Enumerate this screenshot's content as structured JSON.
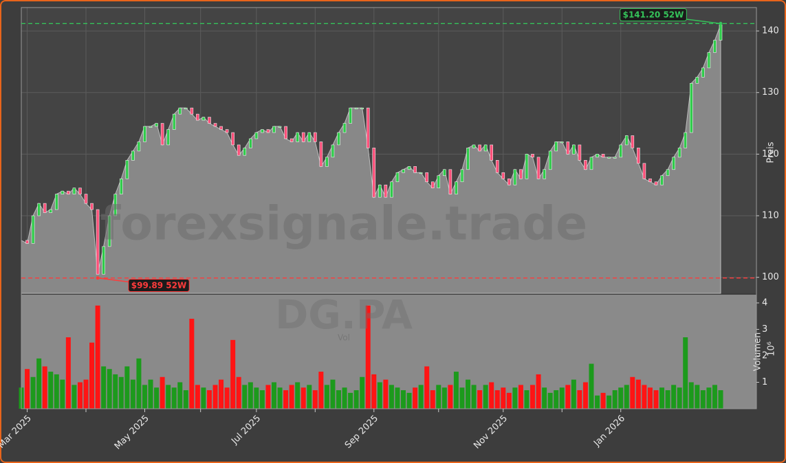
{
  "chart_data": {
    "type": "candlestick",
    "watermark": "forexsignale.trade",
    "symbol": "DG.PA",
    "symbol_sub": "Vol",
    "ylabel": "Preis",
    "volume_ylabel": "Volumen",
    "volume_offset": "10⁶",
    "categories": [
      null,
      "Mar 2025",
      null,
      null,
      null,
      null,
      null,
      null,
      null,
      null,
      null,
      null,
      null,
      null,
      null,
      null,
      null,
      null,
      null,
      null,
      null,
      "May 2025",
      null,
      null,
      null,
      null,
      null,
      null,
      null,
      null,
      null,
      null,
      null,
      null,
      null,
      null,
      null,
      null,
      null,
      null,
      "Jul 2025",
      null,
      null,
      null,
      null,
      null,
      null,
      null,
      null,
      null,
      null,
      null,
      null,
      null,
      null,
      null,
      null,
      null,
      null,
      null,
      "Sep 2025",
      null,
      null,
      null,
      null,
      null,
      null,
      null,
      null,
      null,
      null,
      null,
      null,
      null,
      null,
      null,
      null,
      null,
      null,
      null,
      null,
      null,
      "Nov 2025",
      null,
      null,
      null,
      null,
      null,
      null,
      null,
      null,
      null,
      null,
      null,
      null,
      null,
      null,
      null,
      null,
      null,
      null,
      null,
      "Jan 2026",
      null,
      null,
      null,
      null,
      null,
      null,
      null,
      null,
      null,
      null,
      null,
      null,
      null,
      null,
      null,
      null,
      null
    ],
    "close": [
      106,
      105.5,
      110,
      112,
      110.5,
      111,
      113.5,
      114,
      113.5,
      114.5,
      113.5,
      112,
      111,
      100.5,
      105,
      110,
      113.5,
      116,
      119,
      120.5,
      122,
      124.5,
      124.5,
      125,
      121.5,
      124,
      126.5,
      127.5,
      127.5,
      126.5,
      125.5,
      126,
      125,
      124.5,
      124,
      123.5,
      121.5,
      119.8,
      121,
      122.5,
      123.5,
      124,
      123.5,
      124.5,
      124.5,
      122.5,
      122,
      123.5,
      122,
      123.5,
      122,
      118,
      119.5,
      121.5,
      123.5,
      125,
      127.5,
      127.5,
      127.5,
      121,
      113,
      115,
      113,
      115.5,
      117,
      117.5,
      118,
      117,
      117,
      115.5,
      114.5,
      116.5,
      117.5,
      113.5,
      115.5,
      117.5,
      121,
      121.5,
      120.5,
      121.5,
      119,
      117,
      116,
      115,
      117.5,
      116,
      120,
      119.5,
      116,
      117.5,
      120.5,
      122,
      122,
      120,
      121.5,
      119,
      117.5,
      119.5,
      120,
      119.5,
      119.5,
      119.5,
      121.5,
      123,
      121,
      118.5,
      116,
      115.5,
      115,
      116.5,
      117.5,
      119.5,
      121,
      123.5,
      131.5,
      132.5,
      134,
      136.5,
      138.5,
      141
    ],
    "volume": [
      0.8,
      1.5,
      1.2,
      1.9,
      1.6,
      1.4,
      1.3,
      1.1,
      2.7,
      0.9,
      1.0,
      1.1,
      2.5,
      3.9,
      1.6,
      1.5,
      1.3,
      1.2,
      1.6,
      1.1,
      1.9,
      0.9,
      1.1,
      0.8,
      1.2,
      0.9,
      0.8,
      1.0,
      0.7,
      3.4,
      0.9,
      0.8,
      0.7,
      0.9,
      1.1,
      0.8,
      2.6,
      1.2,
      0.9,
      1.0,
      0.8,
      0.7,
      0.9,
      1.0,
      0.8,
      0.7,
      0.9,
      1.0,
      0.8,
      0.9,
      0.7,
      1.4,
      0.9,
      1.1,
      0.7,
      0.8,
      0.6,
      0.7,
      1.2,
      3.9,
      1.3,
      1.0,
      1.1,
      0.9,
      0.8,
      0.7,
      0.6,
      0.8,
      0.9,
      1.6,
      0.7,
      0.9,
      0.8,
      0.9,
      1.4,
      0.8,
      1.1,
      0.9,
      0.7,
      0.9,
      1.0,
      0.7,
      0.8,
      0.6,
      0.8,
      0.9,
      0.7,
      0.9,
      1.3,
      0.8,
      0.6,
      0.7,
      0.8,
      0.9,
      1.1,
      0.7,
      1.0,
      1.7,
      0.5,
      0.6,
      0.5,
      0.7,
      0.8,
      0.9,
      1.2,
      1.1,
      0.9,
      0.8,
      0.7,
      0.8,
      0.7,
      0.9,
      0.8,
      2.7,
      1.0,
      0.9,
      0.7,
      0.8,
      0.9,
      0.7
    ],
    "up_color": "#2fcc4a",
    "down_color": "#ff4f79",
    "volume_up_color": "#1c9a1c",
    "volume_down_color": "#ff1414",
    "area_color": "#888888",
    "ylim": [
      97.4,
      143.8
    ],
    "yticks": [
      100,
      110,
      120,
      130,
      140
    ],
    "volume_ylim": [
      0,
      4.31
    ],
    "volume_yticks": [
      1,
      2,
      3,
      4
    ],
    "grid": true,
    "high_line": {
      "value": 141.2,
      "label": "$141.20 52W",
      "color": "#35c35a"
    },
    "low_line": {
      "value": 99.89,
      "label": "$99.89 52W",
      "color": "#ff3b3b"
    }
  }
}
